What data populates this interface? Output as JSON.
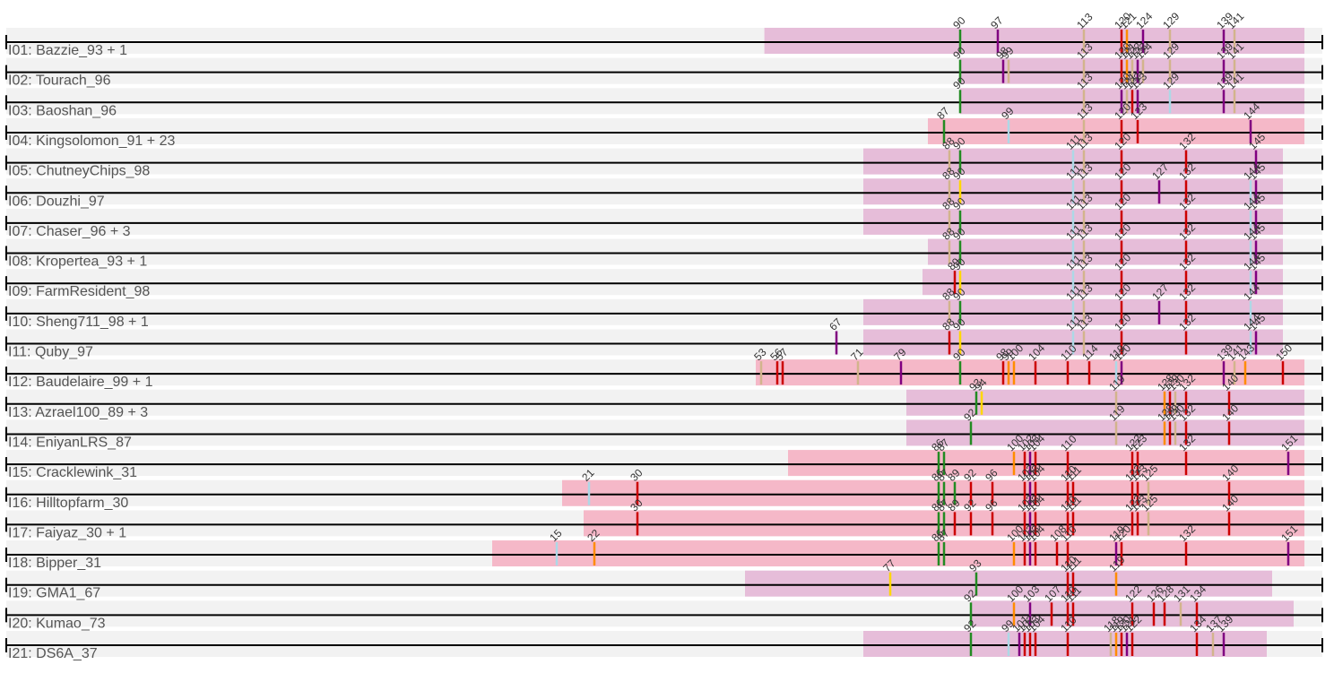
{
  "rows": [
    {
      "label": "I01: Bazzie_93 + 1",
      "color": "#e6bdd9",
      "segs": [
        [
          53.6,
          154
        ]
      ],
      "marks": [
        [
          90,
          "#228b22",
          "90"
        ],
        [
          97,
          "#800080",
          "97"
        ],
        [
          113,
          "#d2b48c",
          "113"
        ],
        [
          120,
          "#cc0000",
          "120"
        ],
        [
          121,
          "#ff8c00",
          "121"
        ],
        [
          124,
          "#800080",
          "124"
        ],
        [
          129,
          "#d2b48c",
          "129"
        ],
        [
          139,
          "#800080",
          "139"
        ],
        [
          141,
          "#d2b48c",
          "141"
        ]
      ]
    },
    {
      "label": "I02: Tourach_96",
      "color": "#e6bdd9",
      "segs": [
        [
          90,
          154
        ]
      ],
      "marks": [
        [
          90,
          "#228b22",
          "90"
        ],
        [
          98,
          "#800080",
          "98"
        ],
        [
          99,
          "#d2b48c",
          "99"
        ],
        [
          113,
          "#d2b48c",
          "113"
        ],
        [
          120,
          "#cc0000",
          "120"
        ],
        [
          121,
          "#ff8c00",
          "121"
        ],
        [
          122,
          "#d2b48c",
          "122"
        ],
        [
          123,
          "#800080",
          "123"
        ],
        [
          124,
          "#d2b48c",
          "124"
        ],
        [
          129,
          "#d2b48c",
          "129"
        ],
        [
          139,
          "#800080",
          "139"
        ],
        [
          141,
          "#d2b48c",
          "141"
        ]
      ]
    },
    {
      "label": "I03: Baoshan_96",
      "color": "#e6bdd9",
      "segs": [
        [
          90,
          154
        ]
      ],
      "marks": [
        [
          90,
          "#228b22",
          "90"
        ],
        [
          113,
          "#d2b48c",
          "113"
        ],
        [
          120,
          "#800080",
          "120"
        ],
        [
          121,
          "#d2b48c",
          "121"
        ],
        [
          122,
          "#cc0000",
          "122"
        ],
        [
          123,
          "#800080",
          "123"
        ],
        [
          129,
          "#add8e6",
          "129"
        ],
        [
          139,
          "#800080",
          "139"
        ],
        [
          141,
          "#d2b48c",
          "141"
        ]
      ]
    },
    {
      "label": "I04: Kingsolomon_91 + 23",
      "color": "#f5b8c8",
      "segs": [
        [
          84,
          154
        ]
      ],
      "marks": [
        [
          87,
          "#228b22",
          "87"
        ],
        [
          99,
          "#add8e6",
          "99"
        ],
        [
          113,
          "#d2b48c",
          "113"
        ],
        [
          120,
          "#cc0000",
          "120"
        ],
        [
          123,
          "#cc0000",
          "123"
        ],
        [
          144,
          "#800080",
          "144"
        ]
      ]
    },
    {
      "label": "I05: ChutneyChips_98",
      "color": "#e6bdd9",
      "segs": [
        [
          72,
          150
        ]
      ],
      "marks": [
        [
          88,
          "#d2b48c",
          "88"
        ],
        [
          90,
          "#228b22",
          "90"
        ],
        [
          111,
          "#add8e6",
          "111"
        ],
        [
          113,
          "#d2b48c",
          "113"
        ],
        [
          120,
          "#cc0000",
          "120"
        ],
        [
          132,
          "#cc0000",
          "132"
        ],
        [
          145,
          "#800080",
          "145"
        ]
      ]
    },
    {
      "label": "I06: Douzhi_97",
      "color": "#e6bdd9",
      "segs": [
        [
          72,
          150
        ]
      ],
      "marks": [
        [
          88,
          "#d2b48c",
          "88"
        ],
        [
          90,
          "#ffd700",
          "90"
        ],
        [
          111,
          "#add8e6",
          "111"
        ],
        [
          113,
          "#d2b48c",
          "113"
        ],
        [
          120,
          "#cc0000",
          "120"
        ],
        [
          127,
          "#800080",
          "127"
        ],
        [
          132,
          "#cc0000",
          "132"
        ],
        [
          144,
          "#add8e6",
          "144"
        ],
        [
          145,
          "#800080",
          "145"
        ]
      ]
    },
    {
      "label": "I07: Chaser_96 + 3",
      "color": "#e6bdd9",
      "segs": [
        [
          72,
          150
        ]
      ],
      "marks": [
        [
          88,
          "#d2b48c",
          "88"
        ],
        [
          90,
          "#228b22",
          "90"
        ],
        [
          111,
          "#add8e6",
          "111"
        ],
        [
          113,
          "#d2b48c",
          "113"
        ],
        [
          120,
          "#cc0000",
          "120"
        ],
        [
          132,
          "#cc0000",
          "132"
        ],
        [
          144,
          "#add8e6",
          "144"
        ],
        [
          145,
          "#800080",
          "145"
        ]
      ]
    },
    {
      "label": "I08: Kropertea_93 + 1",
      "color": "#e6bdd9",
      "segs": [
        [
          84,
          150
        ]
      ],
      "marks": [
        [
          88,
          "#d2b48c",
          "88"
        ],
        [
          90,
          "#228b22",
          "90"
        ],
        [
          111,
          "#add8e6",
          "111"
        ],
        [
          113,
          "#d2b48c",
          "113"
        ],
        [
          120,
          "#cc0000",
          "120"
        ],
        [
          132,
          "#cc0000",
          "132"
        ],
        [
          144,
          "#add8e6",
          "144"
        ],
        [
          145,
          "#800080",
          "145"
        ]
      ]
    },
    {
      "label": "I09: FarmResident_98",
      "color": "#e6bdd9",
      "segs": [
        [
          83,
          150
        ]
      ],
      "marks": [
        [
          89,
          "#cc0000",
          "89"
        ],
        [
          90,
          "#ffd700",
          "90"
        ],
        [
          111,
          "#add8e6",
          "111"
        ],
        [
          113,
          "#d2b48c",
          "113"
        ],
        [
          120,
          "#cc0000",
          "120"
        ],
        [
          132,
          "#cc0000",
          "132"
        ],
        [
          144,
          "#add8e6",
          "144"
        ],
        [
          145,
          "#800080",
          "145"
        ]
      ]
    },
    {
      "label": "I10: Sheng711_98 + 1",
      "color": "#e6bdd9",
      "segs": [
        [
          72,
          150
        ]
      ],
      "marks": [
        [
          88,
          "#d2b48c",
          "88"
        ],
        [
          90,
          "#228b22",
          "90"
        ],
        [
          111,
          "#add8e6",
          "111"
        ],
        [
          113,
          "#d2b48c",
          "113"
        ],
        [
          120,
          "#cc0000",
          "120"
        ],
        [
          127,
          "#800080",
          "127"
        ],
        [
          132,
          "#cc0000",
          "132"
        ],
        [
          144,
          "#add8e6",
          "144"
        ]
      ]
    },
    {
      "label": "I11: Quby_97",
      "color": "#e6bdd9",
      "segs": [
        [
          72,
          150
        ]
      ],
      "marks": [
        [
          67,
          "#800080",
          "67"
        ],
        [
          88,
          "#cc0000",
          "88"
        ],
        [
          90,
          "#ffd700",
          "90"
        ],
        [
          111,
          "#add8e6",
          "111"
        ],
        [
          113,
          "#d2b48c",
          "113"
        ],
        [
          120,
          "#cc0000",
          "120"
        ],
        [
          132,
          "#cc0000",
          "132"
        ],
        [
          144,
          "#add8e6",
          "144"
        ],
        [
          145,
          "#800080",
          "145"
        ]
      ]
    },
    {
      "label": "I12: Baudelaire_99 + 1",
      "color": "#f5b8c8",
      "segs": [
        [
          52,
          154
        ]
      ],
      "marks": [
        [
          53,
          "#d2b48c",
          "53"
        ],
        [
          56,
          "#cc0000",
          "56"
        ],
        [
          57,
          "#cc0000",
          "57"
        ],
        [
          71,
          "#d2b48c",
          "71"
        ],
        [
          79,
          "#800080",
          "79"
        ],
        [
          90,
          "#228b22",
          "90"
        ],
        [
          98,
          "#cc0000",
          "98"
        ],
        [
          99,
          "#ff8c00",
          "99"
        ],
        [
          100,
          "#ff8c00",
          "100"
        ],
        [
          104,
          "#cc0000",
          "104"
        ],
        [
          110,
          "#cc0000",
          "110"
        ],
        [
          114,
          "#cc0000",
          "114"
        ],
        [
          119,
          "#add8e6",
          "119"
        ],
        [
          120,
          "#800080",
          "120"
        ],
        [
          139,
          "#800080",
          "139"
        ],
        [
          141,
          "#d2b48c",
          "141"
        ],
        [
          143,
          "#ff8c00",
          "143"
        ],
        [
          150,
          "#cc0000",
          "150"
        ]
      ]
    },
    {
      "label": "I13: Azrael100_89 + 3",
      "color": "#e6bdd9",
      "segs": [
        [
          80,
          154
        ]
      ],
      "marks": [
        [
          93,
          "#228b22",
          "93"
        ],
        [
          94,
          "#ffd700",
          "94"
        ],
        [
          119,
          "#d2b48c",
          "119"
        ],
        [
          128,
          "#ff8c00",
          "128"
        ],
        [
          129,
          "#cc0000",
          "129"
        ],
        [
          130,
          "#d2b48c",
          "130"
        ],
        [
          132,
          "#cc0000",
          "132"
        ],
        [
          140,
          "#cc0000",
          "140"
        ]
      ]
    },
    {
      "label": "I14: EniyanLRS_87",
      "color": "#e6bdd9",
      "segs": [
        [
          80,
          154
        ]
      ],
      "marks": [
        [
          92,
          "#228b22",
          "92"
        ],
        [
          119,
          "#d2b48c",
          "119"
        ],
        [
          128,
          "#ff8c00",
          "128"
        ],
        [
          129,
          "#cc0000",
          "129"
        ],
        [
          130,
          "#d2b48c",
          "130"
        ],
        [
          132,
          "#cc0000",
          "132"
        ],
        [
          140,
          "#cc0000",
          "140"
        ]
      ]
    },
    {
      "label": "I15: Cracklewink_31",
      "color": "#f5b8c8",
      "segs": [
        [
          58,
          154
        ]
      ],
      "marks": [
        [
          86,
          "#228b22",
          "86"
        ],
        [
          87,
          "#228b22",
          "87"
        ],
        [
          100,
          "#ff8c00",
          "100"
        ],
        [
          102,
          "#cc0000",
          "102"
        ],
        [
          103,
          "#800080",
          "103"
        ],
        [
          104,
          "#cc0000",
          "104"
        ],
        [
          110,
          "#cc0000",
          "110"
        ],
        [
          122,
          "#cc0000",
          "122"
        ],
        [
          123,
          "#cc0000",
          "123"
        ],
        [
          132,
          "#cc0000",
          "132"
        ],
        [
          151,
          "#800080",
          "151"
        ]
      ]
    },
    {
      "label": "I16: Hilltopfarm_30",
      "color": "#f5b8c8",
      "segs": [
        [
          16,
          154
        ]
      ],
      "marks": [
        [
          21,
          "#add8e6",
          "21"
        ],
        [
          30,
          "#cc0000",
          "30"
        ],
        [
          86,
          "#228b22",
          "86"
        ],
        [
          87,
          "#228b22",
          "87"
        ],
        [
          89,
          "#228b22",
          "89"
        ],
        [
          92,
          "#cc0000",
          "92"
        ],
        [
          96,
          "#cc0000",
          "96"
        ],
        [
          102,
          "#cc0000",
          "102"
        ],
        [
          103,
          "#800080",
          "103"
        ],
        [
          104,
          "#cc0000",
          "104"
        ],
        [
          110,
          "#cc0000",
          "110"
        ],
        [
          111,
          "#cc0000",
          "111"
        ],
        [
          122,
          "#cc0000",
          "122"
        ],
        [
          123,
          "#cc0000",
          "123"
        ],
        [
          125,
          "#d2b48c",
          "125"
        ],
        [
          140,
          "#cc0000",
          "140"
        ]
      ]
    },
    {
      "label": "I17: Faiyaz_30 + 1",
      "color": "#f5b8c8",
      "segs": [
        [
          20,
          154
        ]
      ],
      "marks": [
        [
          30,
          "#cc0000",
          "30"
        ],
        [
          86,
          "#228b22",
          "86"
        ],
        [
          87,
          "#228b22",
          "87"
        ],
        [
          89,
          "#cc0000",
          "89"
        ],
        [
          92,
          "#cc0000",
          "92"
        ],
        [
          96,
          "#cc0000",
          "96"
        ],
        [
          102,
          "#cc0000",
          "102"
        ],
        [
          103,
          "#800080",
          "103"
        ],
        [
          104,
          "#cc0000",
          "104"
        ],
        [
          110,
          "#cc0000",
          "110"
        ],
        [
          111,
          "#cc0000",
          "111"
        ],
        [
          122,
          "#cc0000",
          "122"
        ],
        [
          123,
          "#cc0000",
          "123"
        ],
        [
          125,
          "#d2b48c",
          "125"
        ],
        [
          140,
          "#cc0000",
          "140"
        ]
      ]
    },
    {
      "label": "I18: Bipper_31",
      "color": "#f5b8c8",
      "segs": [
        [
          3,
          154
        ]
      ],
      "marks": [
        [
          15,
          "#add8e6",
          "15"
        ],
        [
          22,
          "#ff8c00",
          "22"
        ],
        [
          86,
          "#228b22",
          "86"
        ],
        [
          87,
          "#228b22",
          "87"
        ],
        [
          100,
          "#ff8c00",
          "100"
        ],
        [
          102,
          "#cc0000",
          "102"
        ],
        [
          103,
          "#800080",
          "103"
        ],
        [
          104,
          "#cc0000",
          "104"
        ],
        [
          108,
          "#cc0000",
          "108"
        ],
        [
          110,
          "#cc0000",
          "110"
        ],
        [
          119,
          "#800080",
          "119"
        ],
        [
          120,
          "#cc0000",
          "120"
        ],
        [
          132,
          "#cc0000",
          "132"
        ],
        [
          151,
          "#800080",
          "151"
        ]
      ]
    },
    {
      "label": "I19: GMA1_67",
      "color": "#e6bdd9",
      "segs": [
        [
          50,
          148
        ]
      ],
      "marks": [
        [
          77,
          "#ffd700",
          "77"
        ],
        [
          93,
          "#228b22",
          "93"
        ],
        [
          110,
          "#cc0000",
          "110"
        ],
        [
          111,
          "#cc0000",
          "111"
        ],
        [
          119,
          "#ff8c00",
          "119"
        ]
      ]
    },
    {
      "label": "I20: Kumao_73",
      "color": "#e6bdd9",
      "segs": [
        [
          92,
          152
        ]
      ],
      "marks": [
        [
          92,
          "#228b22",
          "92"
        ],
        [
          100,
          "#ff8c00",
          "100"
        ],
        [
          103,
          "#800080",
          "103"
        ],
        [
          107,
          "#cc0000",
          "107"
        ],
        [
          110,
          "#cc0000",
          "110"
        ],
        [
          111,
          "#cc0000",
          "111"
        ],
        [
          122,
          "#cc0000",
          "122"
        ],
        [
          126,
          "#cc0000",
          "126"
        ],
        [
          128,
          "#cc0000",
          "128"
        ],
        [
          131,
          "#d2b48c",
          "131"
        ],
        [
          134,
          "#cc0000",
          "134"
        ]
      ]
    },
    {
      "label": "I21: DS6A_37",
      "color": "#e6bdd9",
      "segs": [
        [
          72,
          147
        ]
      ],
      "marks": [
        [
          92,
          "#228b22",
          "92"
        ],
        [
          99,
          "#add8e6",
          "99"
        ],
        [
          101,
          "#800080",
          "101"
        ],
        [
          102,
          "#cc0000",
          "102"
        ],
        [
          103,
          "#cc0000",
          "103"
        ],
        [
          104,
          "#cc0000",
          "104"
        ],
        [
          110,
          "#cc0000",
          "110"
        ],
        [
          118,
          "#d2b48c",
          "118"
        ],
        [
          119,
          "#ff8c00",
          "119"
        ],
        [
          120,
          "#cc0000",
          "120"
        ],
        [
          121,
          "#800080",
          "121"
        ],
        [
          122,
          "#cc0000",
          "122"
        ],
        [
          134,
          "#cc0000",
          "134"
        ],
        [
          137,
          "#d2b48c",
          "137"
        ],
        [
          139,
          "#800080",
          "139"
        ]
      ]
    }
  ]
}
